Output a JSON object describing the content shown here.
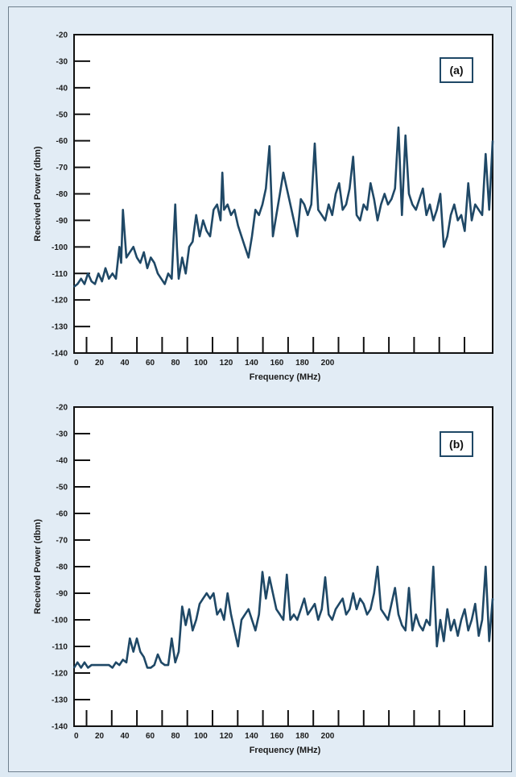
{
  "colors": {
    "line": "#1f4866",
    "frame": "#6f7f8d",
    "background": "#e2ecf5",
    "plot_bg": "#ffffff",
    "label_border": "#1f4866"
  },
  "chart_data": [
    {
      "type": "line",
      "panel_label": "(a)",
      "xlabel": "Frequency (MHz)",
      "ylabel": "Received Power (dbm)",
      "xlim": [
        0,
        240
      ],
      "ylim": [
        -140,
        -20
      ],
      "x_tick_labels": [
        "0",
        "20",
        "40",
        "60",
        "80",
        "100",
        "120",
        "140",
        "160",
        "180",
        "200"
      ],
      "y_tick_labels": [
        "-20",
        "-30",
        "-40",
        "-50",
        "-60",
        "-70",
        "-80",
        "-90",
        "-100",
        "-110",
        "-120",
        "-130",
        "-140"
      ],
      "grid": false,
      "series": [
        {
          "x": [
            0,
            2,
            4,
            6,
            8,
            10,
            12,
            14,
            16,
            18,
            20,
            22,
            24,
            26,
            27,
            28,
            30,
            32,
            34,
            36,
            38,
            40,
            42,
            44,
            46,
            48,
            50,
            52,
            54,
            56,
            58,
            59,
            60,
            62,
            64,
            66,
            68,
            70,
            72,
            74,
            76,
            78,
            80,
            82,
            84,
            85,
            86,
            88,
            90,
            92,
            94,
            96,
            98,
            100,
            102,
            104,
            106,
            108,
            110,
            112,
            114,
            116,
            118,
            120,
            122,
            124,
            126,
            128,
            130,
            132,
            134,
            136,
            138,
            140,
            142,
            144,
            146,
            148,
            150,
            152,
            154,
            156,
            158,
            160,
            162,
            164,
            166,
            168,
            170,
            172,
            174,
            176,
            178,
            180,
            182,
            184,
            186,
            188,
            190,
            192,
            194,
            196,
            198,
            200,
            202,
            204,
            206,
            208,
            210,
            212,
            214,
            216,
            218,
            220,
            222,
            224,
            226,
            228,
            230,
            232,
            234,
            236,
            238,
            240
          ],
          "y": [
            -115,
            -114,
            -112,
            -114,
            -110,
            -113,
            -114,
            -110,
            -113,
            -108,
            -112,
            -110,
            -112,
            -100,
            -106,
            -86,
            -104,
            -102,
            -100,
            -104,
            -106,
            -102,
            -108,
            -104,
            -106,
            -110,
            -112,
            -114,
            -110,
            -112,
            -84,
            -100,
            -112,
            -104,
            -110,
            -100,
            -98,
            -88,
            -96,
            -90,
            -94,
            -96,
            -86,
            -84,
            -90,
            -72,
            -86,
            -84,
            -88,
            -86,
            -92,
            -96,
            -100,
            -104,
            -96,
            -86,
            -88,
            -84,
            -78,
            -62,
            -96,
            -88,
            -80,
            -72,
            -78,
            -84,
            -90,
            -96,
            -82,
            -84,
            -88,
            -84,
            -61,
            -86,
            -88,
            -90,
            -84,
            -88,
            -80,
            -76,
            -86,
            -84,
            -78,
            -66,
            -88,
            -90,
            -84,
            -86,
            -76,
            -82,
            -90,
            -84,
            -80,
            -84,
            -82,
            -78,
            -55,
            -88,
            -58,
            -80,
            -84,
            -86,
            -82,
            -78,
            -88,
            -84,
            -90,
            -86,
            -80,
            -100,
            -96,
            -88,
            -84,
            -90,
            -88,
            -94,
            -76,
            -90,
            -84,
            -86,
            -88,
            -65,
            -86,
            -60
          ]
        }
      ]
    },
    {
      "type": "line",
      "panel_label": "(b)",
      "xlabel": "Frequency (MHz)",
      "ylabel": "Received Power (dbm)",
      "xlim": [
        0,
        240
      ],
      "ylim": [
        -140,
        -20
      ],
      "x_tick_labels": [
        "0",
        "20",
        "40",
        "60",
        "80",
        "100",
        "120",
        "140",
        "160",
        "180",
        "200"
      ],
      "y_tick_labels": [
        "-20",
        "-30",
        "-40",
        "-50",
        "-60",
        "-70",
        "-80",
        "-90",
        "-100",
        "-110",
        "-120",
        "-130",
        "-140"
      ],
      "grid": false,
      "series": [
        {
          "x": [
            0,
            2,
            4,
            6,
            8,
            10,
            12,
            14,
            16,
            18,
            20,
            22,
            24,
            26,
            28,
            30,
            32,
            34,
            36,
            38,
            40,
            42,
            44,
            46,
            48,
            50,
            52,
            54,
            56,
            58,
            60,
            62,
            64,
            66,
            68,
            70,
            72,
            74,
            76,
            78,
            80,
            82,
            84,
            86,
            88,
            90,
            92,
            94,
            96,
            98,
            100,
            102,
            104,
            106,
            108,
            110,
            112,
            114,
            116,
            118,
            120,
            122,
            124,
            126,
            128,
            130,
            132,
            134,
            136,
            138,
            140,
            142,
            144,
            146,
            148,
            150,
            152,
            154,
            156,
            158,
            160,
            162,
            164,
            166,
            168,
            170,
            172,
            174,
            176,
            178,
            180,
            182,
            184,
            186,
            188,
            190,
            192,
            194,
            196,
            198,
            200,
            202,
            204,
            206,
            208,
            210,
            212,
            214,
            216,
            218,
            220,
            222,
            224,
            226,
            228,
            230,
            232,
            234,
            236,
            238,
            240
          ],
          "y": [
            -118,
            -116,
            -118,
            -116,
            -118,
            -117,
            -117,
            -117,
            -117,
            -117,
            -117,
            -118,
            -116,
            -117,
            -115,
            -116,
            -107,
            -112,
            -107,
            -112,
            -114,
            -118,
            -118,
            -117,
            -113,
            -116,
            -117,
            -117,
            -107,
            -116,
            -112,
            -95,
            -102,
            -96,
            -104,
            -100,
            -94,
            -92,
            -90,
            -92,
            -90,
            -98,
            -96,
            -100,
            -90,
            -98,
            -104,
            -110,
            -100,
            -98,
            -96,
            -100,
            -104,
            -98,
            -82,
            -92,
            -84,
            -90,
            -96,
            -98,
            -100,
            -83,
            -100,
            -98,
            -100,
            -96,
            -92,
            -98,
            -96,
            -94,
            -100,
            -96,
            -84,
            -98,
            -100,
            -96,
            -94,
            -92,
            -98,
            -96,
            -90,
            -96,
            -92,
            -94,
            -98,
            -96,
            -90,
            -80,
            -96,
            -98,
            -100,
            -94,
            -88,
            -98,
            -102,
            -104,
            -88,
            -104,
            -98,
            -102,
            -104,
            -100,
            -102,
            -80,
            -110,
            -100,
            -108,
            -96,
            -104,
            -100,
            -106,
            -100,
            -96,
            -104,
            -100,
            -94,
            -106,
            -100,
            -80,
            -108,
            -92
          ]
        }
      ]
    }
  ]
}
